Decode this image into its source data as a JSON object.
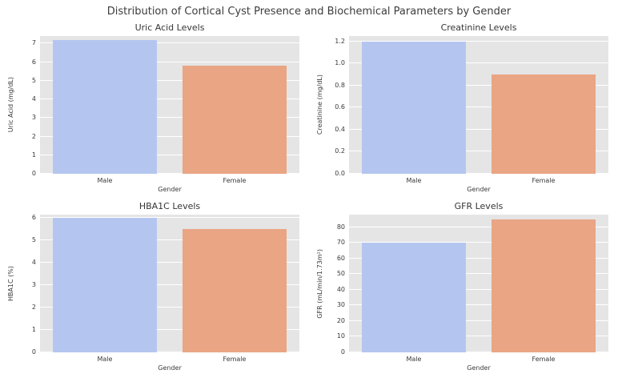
{
  "figure_title": "Distribution of Cortical Cyst Presence and Biochemical Parameters by Gender",
  "colors": {
    "series": [
      "#b4c6f0",
      "#e9a584"
    ],
    "plot_background": "#e5e5e5",
    "gridline": "#ffffff"
  },
  "chart_data": [
    {
      "type": "bar",
      "title": "Uric Acid Levels",
      "xlabel": "Gender",
      "ylabel": "Uric Acid (mg/dL)",
      "categories": [
        "Male",
        "Female"
      ],
      "values": [
        7.2,
        5.8
      ],
      "ylim": [
        0,
        7.4
      ],
      "yticks": [
        "0",
        "1",
        "2",
        "3",
        "4",
        "5",
        "6",
        "7"
      ],
      "grid": true,
      "legend": "none"
    },
    {
      "type": "bar",
      "title": "Creatinine Levels",
      "xlabel": "Gender",
      "ylabel": "Creatinine (mg/dL)",
      "categories": [
        "Male",
        "Female"
      ],
      "values": [
        1.2,
        0.9
      ],
      "ylim": [
        0,
        1.25
      ],
      "yticks": [
        "0.0",
        "0.2",
        "0.4",
        "0.6",
        "0.8",
        "1.0",
        "1.2"
      ],
      "grid": true,
      "legend": "none"
    },
    {
      "type": "bar",
      "title": "HBA1C Levels",
      "xlabel": "Gender",
      "ylabel": "HBA1C (%)",
      "categories": [
        "Male",
        "Female"
      ],
      "values": [
        6.0,
        5.5
      ],
      "ylim": [
        0,
        6.15
      ],
      "yticks": [
        "0",
        "1",
        "2",
        "3",
        "4",
        "5",
        "6"
      ],
      "grid": true,
      "legend": "none"
    },
    {
      "type": "bar",
      "title": "GFR Levels",
      "xlabel": "Gender",
      "ylabel": "GFR (mL/min/1.73m²)",
      "categories": [
        "Male",
        "Female"
      ],
      "values": [
        70,
        85
      ],
      "ylim": [
        0,
        88
      ],
      "yticks": [
        "0",
        "10",
        "20",
        "30",
        "40",
        "50",
        "60",
        "70",
        "80"
      ],
      "grid": true,
      "legend": "none"
    }
  ]
}
